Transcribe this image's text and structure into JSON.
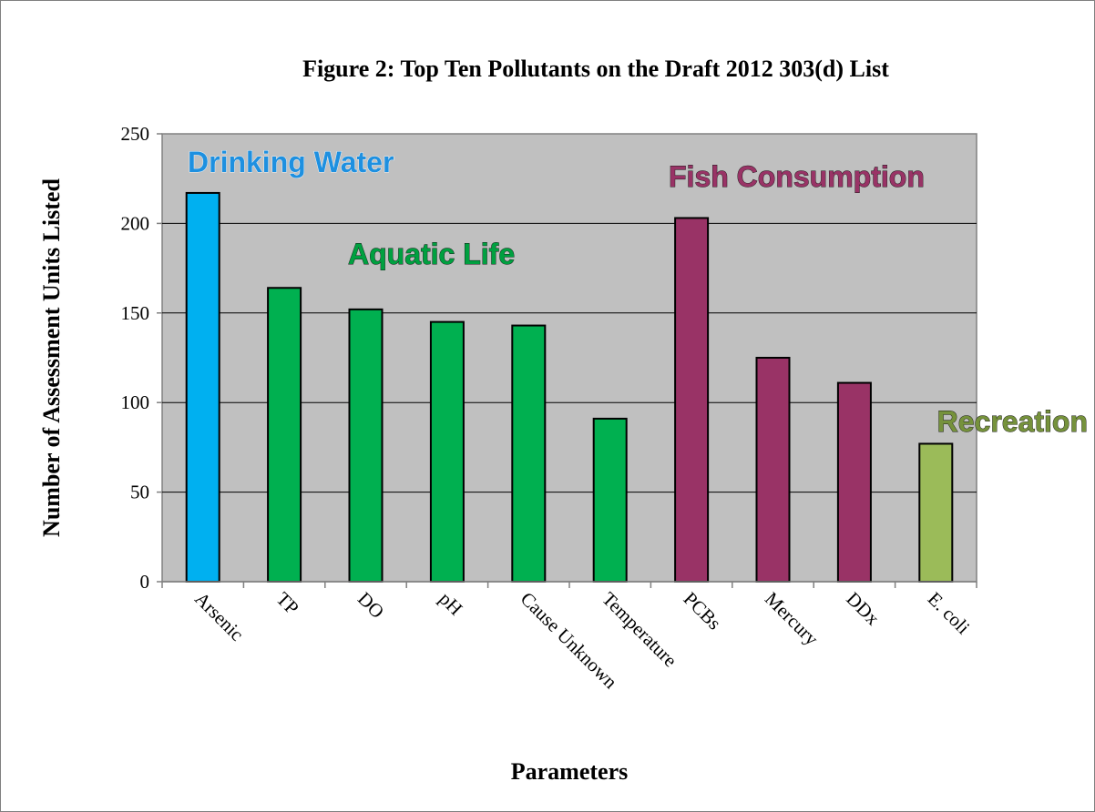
{
  "chart_data": {
    "type": "bar",
    "title": "Figure 2: Top Ten Pollutants on the Draft 2012 303(d) List",
    "xlabel": "Parameters",
    "ylabel": "Number of Assessment Units Listed",
    "ylim": [
      0,
      250
    ],
    "yticks": [
      "0",
      "50",
      "100",
      "150",
      "200",
      "250"
    ],
    "grid": true,
    "categories": [
      "Arsenic",
      "TP",
      "DO",
      "pH",
      "Cause Unknown",
      "Temperature",
      "PCBs",
      "Mercury",
      "DDx",
      "E. coli"
    ],
    "values": [
      217,
      164,
      152,
      145,
      143,
      91,
      203,
      125,
      111,
      77
    ],
    "bar_groups": [
      "drinking",
      "aquatic",
      "aquatic",
      "aquatic",
      "aquatic",
      "aquatic",
      "fish",
      "fish",
      "fish",
      "recreation"
    ],
    "groups": [
      {
        "key": "drinking",
        "label": "Drinking Water",
        "color": "#00b0f0",
        "text_color": "#1e90e0"
      },
      {
        "key": "aquatic",
        "label": "Aquatic Life",
        "color": "#00b050",
        "text_color": "#00a040"
      },
      {
        "key": "fish",
        "label": "Fish Consumption",
        "color": "#993366",
        "text_color": "#993366"
      },
      {
        "key": "recreation",
        "label": "Recreation",
        "color": "#9bbb59",
        "text_color": "#76923c"
      }
    ],
    "plot_background": "#c0c0c0"
  }
}
